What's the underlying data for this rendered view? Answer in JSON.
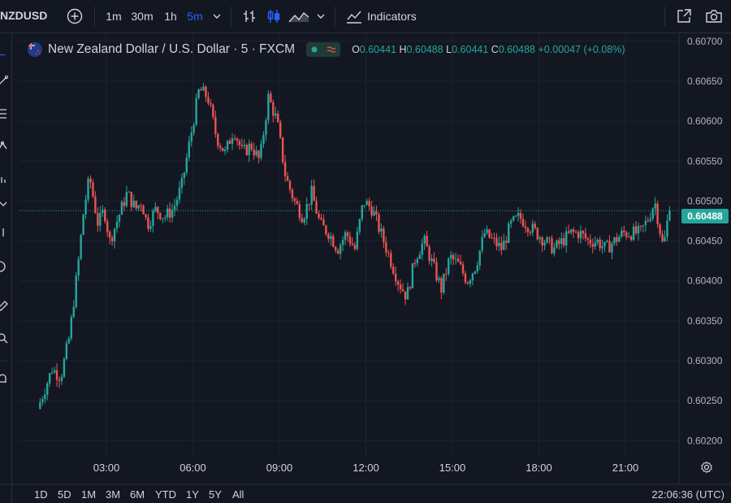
{
  "toolbar": {
    "symbol": "NZDUSD",
    "intervals": [
      "1m",
      "30m",
      "1h",
      "5m"
    ],
    "active_interval": "5m",
    "indicators_label": "Indicators",
    "icons": [
      "add-symbol-icon",
      "chevron-down-icon",
      "bar-chart-icon",
      "candle-chart-icon",
      "area-chart-icon",
      "indicators-icon",
      "fullscreen-icon",
      "camera-icon"
    ]
  },
  "legend": {
    "title": "New Zealand Dollar / U.S. Dollar · 5 · FXCM",
    "o_label": "O",
    "o_value": "0.60441",
    "h_label": "H",
    "h_value": "0.60488",
    "l_label": "L",
    "l_value": "0.60441",
    "c_label": "C",
    "c_value": "0.60488",
    "change": "+0.00047 (+0.08%)"
  },
  "current_price": "0.60488",
  "bottom": {
    "ranges": [
      "1D",
      "5D",
      "1M",
      "3M",
      "6M",
      "YTD",
      "1Y",
      "5Y",
      "All"
    ],
    "clock": "22:06:36 (UTC)"
  },
  "colors": {
    "up": "#26a69a",
    "down": "#ef5350",
    "background": "#131722",
    "grid": "#1e222d",
    "text": "#d1d4dc",
    "active": "#2962ff"
  },
  "chart_data": {
    "type": "candlestick",
    "title": "New Zealand Dollar / U.S. Dollar · 5 · FXCM",
    "xlabel": "",
    "ylabel": "",
    "ylim": [
      0.6018,
      0.6071
    ],
    "yticks": [
      "0.60700",
      "0.60650",
      "0.60600",
      "0.60550",
      "0.60500",
      "0.60450",
      "0.60400",
      "0.60350",
      "0.60300",
      "0.60250",
      "0.60200"
    ],
    "ytick_values": [
      0.607,
      0.6065,
      0.606,
      0.6055,
      0.605,
      0.6045,
      0.604,
      0.6035,
      0.603,
      0.6025,
      0.602
    ],
    "xticks": [
      "03:00",
      "06:00",
      "09:00",
      "12:00",
      "15:00",
      "18:00",
      "21:00"
    ],
    "xtick_hours": [
      3,
      6,
      9,
      12,
      15,
      18,
      21
    ],
    "time_range_hours": [
      0.7,
      23.0
    ],
    "last_price": 0.60488,
    "path_hours": [
      0.7,
      1.0,
      1.2,
      1.5,
      1.8,
      2.1,
      2.3,
      2.5,
      2.8,
      3.0,
      3.2,
      3.5,
      3.8,
      4.1,
      4.3,
      4.5,
      4.8,
      5.1,
      5.4,
      5.7,
      6.0,
      6.3,
      6.6,
      6.9,
      7.2,
      7.5,
      7.8,
      8.1,
      8.4,
      8.7,
      9.0,
      9.3,
      9.6,
      9.9,
      10.2,
      10.5,
      10.8,
      11.1,
      11.4,
      11.7,
      12.0,
      12.3,
      12.6,
      12.9,
      13.2,
      13.5,
      13.8,
      14.1,
      14.4,
      14.7,
      15.0,
      15.3,
      15.6,
      15.9,
      16.2,
      16.5,
      16.8,
      17.1,
      17.4,
      17.7,
      18.0,
      18.3,
      18.6,
      18.9,
      19.2,
      19.5,
      19.8,
      20.1,
      20.4,
      20.7,
      21.0,
      21.3,
      21.6,
      21.9,
      22.1,
      22.4,
      22.6
    ],
    "path_prices": [
      0.6024,
      0.6027,
      0.6029,
      0.6028,
      0.6033,
      0.6042,
      0.6049,
      0.6053,
      0.6047,
      0.6049,
      0.6045,
      0.6048,
      0.6051,
      0.6049,
      0.605,
      0.6047,
      0.6049,
      0.6048,
      0.6049,
      0.6052,
      0.6058,
      0.6064,
      0.6063,
      0.6058,
      0.6056,
      0.6059,
      0.6056,
      0.6057,
      0.6055,
      0.6063,
      0.606,
      0.6053,
      0.605,
      0.6048,
      0.6051,
      0.6047,
      0.6046,
      0.6044,
      0.6046,
      0.6044,
      0.605,
      0.6049,
      0.6046,
      0.6043,
      0.604,
      0.6038,
      0.6043,
      0.6045,
      0.6042,
      0.6039,
      0.6043,
      0.6042,
      0.604,
      0.6042,
      0.6046,
      0.6045,
      0.6044,
      0.6047,
      0.6048,
      0.6047,
      0.6046,
      0.6045,
      0.6044,
      0.6045,
      0.6046,
      0.6046,
      0.6045,
      0.6045,
      0.6044,
      0.6045,
      0.6046,
      0.6046,
      0.6046,
      0.6048,
      0.605,
      0.6044,
      0.6049
    ]
  }
}
